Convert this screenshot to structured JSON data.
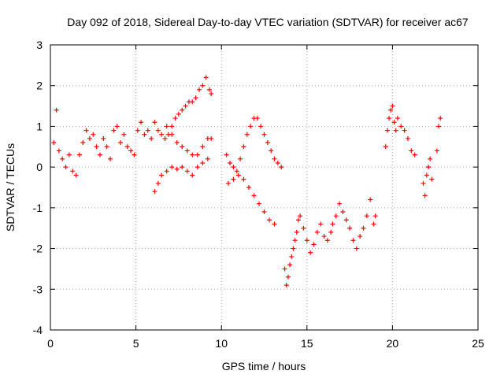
{
  "chart_data": {
    "type": "scatter",
    "title": "Day 092 of 2018, Sidereal Day-to-day VTEC variation (SDTVAR) for receiver ac67",
    "xlabel": "GPS time / hours",
    "ylabel": "SDTVAR / TECUs",
    "xlim": [
      0,
      25
    ],
    "ylim": [
      -4,
      3
    ],
    "xticks": [
      "0",
      "5",
      "10",
      "15",
      "20",
      "25"
    ],
    "yticks": [
      "-4",
      "-3",
      "-2",
      "-1",
      "0",
      "1",
      "2",
      "3"
    ],
    "grid": true,
    "marker": "+",
    "color": "#ff0000",
    "series": [
      {
        "name": "SDTVAR",
        "x": [
          0.2,
          0.35,
          0.5,
          0.7,
          0.9,
          1.1,
          1.3,
          1.5,
          1.7,
          1.9,
          2.1,
          2.3,
          2.5,
          2.7,
          2.9,
          3.1,
          3.3,
          3.5,
          3.7,
          3.9,
          4.1,
          4.3,
          4.5,
          4.7,
          4.9,
          5.1,
          5.3,
          5.5,
          5.7,
          5.9,
          6.1,
          6.3,
          6.5,
          6.7,
          6.9,
          7.1,
          7.3,
          7.5,
          7.7,
          7.9,
          8.1,
          8.3,
          8.5,
          8.7,
          8.9,
          9.1,
          9.3,
          9.4,
          6.1,
          6.3,
          6.5,
          6.8,
          7.1,
          7.4,
          7.7,
          8.0,
          8.3,
          8.6,
          8.9,
          9.2,
          6.8,
          7.1,
          7.4,
          7.7,
          8.0,
          8.3,
          8.6,
          8.9,
          9.2,
          9.4,
          10.3,
          10.5,
          10.7,
          10.9,
          11.1,
          11.3,
          11.5,
          11.7,
          11.9,
          12.1,
          12.3,
          12.5,
          12.7,
          12.9,
          13.1,
          13.3,
          13.5,
          10.4,
          10.7,
          11.0,
          11.3,
          11.6,
          11.9,
          12.2,
          12.5,
          12.8,
          13.1,
          13.7,
          13.8,
          13.9,
          14.0,
          14.1,
          14.2,
          14.3,
          14.4,
          14.5,
          14.6,
          14.8,
          15.0,
          15.2,
          15.4,
          15.6,
          15.8,
          16.0,
          16.2,
          16.4,
          16.5,
          16.7,
          16.9,
          17.1,
          17.3,
          17.5,
          17.7,
          17.9,
          18.1,
          18.3,
          18.5,
          18.7,
          18.9,
          19.0,
          19.6,
          19.7,
          19.8,
          19.9,
          20.0,
          20.1,
          20.2,
          20.3,
          20.5,
          20.7,
          20.9,
          21.1,
          21.3,
          21.8,
          21.9,
          22.0,
          22.1,
          22.2,
          22.3,
          22.6,
          22.7,
          22.8
        ],
        "y": [
          0.6,
          1.4,
          0.4,
          0.2,
          0.0,
          0.3,
          -0.1,
          -0.2,
          0.3,
          0.6,
          0.9,
          0.7,
          0.8,
          0.5,
          0.3,
          0.7,
          0.5,
          0.2,
          0.9,
          1.0,
          0.6,
          0.8,
          0.5,
          0.4,
          0.3,
          0.9,
          1.1,
          0.8,
          0.9,
          0.7,
          1.1,
          0.9,
          0.8,
          0.7,
          0.8,
          1.0,
          1.2,
          1.3,
          1.4,
          1.5,
          1.6,
          1.6,
          1.7,
          1.9,
          2.0,
          2.2,
          1.9,
          1.8,
          -0.6,
          -0.4,
          -0.2,
          -0.1,
          0.0,
          -0.05,
          0.0,
          -0.1,
          -0.2,
          0.0,
          0.1,
          0.2,
          1.0,
          0.8,
          0.6,
          0.5,
          0.4,
          0.3,
          0.3,
          0.5,
          0.7,
          0.7,
          0.3,
          0.1,
          0.0,
          -0.1,
          0.2,
          0.5,
          0.8,
          1.0,
          1.2,
          1.2,
          1.0,
          0.8,
          0.6,
          0.4,
          0.2,
          0.1,
          0.0,
          -0.4,
          -0.3,
          -0.2,
          -0.3,
          -0.5,
          -0.7,
          -0.9,
          -1.1,
          -1.3,
          -1.4,
          -2.5,
          -2.9,
          -2.7,
          -2.4,
          -2.2,
          -2.0,
          -1.8,
          -1.6,
          -1.3,
          -1.2,
          -1.5,
          -1.8,
          -2.1,
          -1.9,
          -1.6,
          -1.4,
          -1.7,
          -1.8,
          -1.6,
          -1.4,
          -1.2,
          -0.9,
          -1.1,
          -1.3,
          -1.5,
          -1.8,
          -2.0,
          -1.7,
          -1.5,
          -1.2,
          -0.8,
          -1.4,
          -1.2,
          0.5,
          0.9,
          1.2,
          1.4,
          1.5,
          1.1,
          0.9,
          1.2,
          1.0,
          0.9,
          0.7,
          0.4,
          0.3,
          -0.4,
          -0.7,
          -0.2,
          0.0,
          0.2,
          -0.3,
          0.4,
          1.0,
          1.2
        ]
      }
    ]
  }
}
